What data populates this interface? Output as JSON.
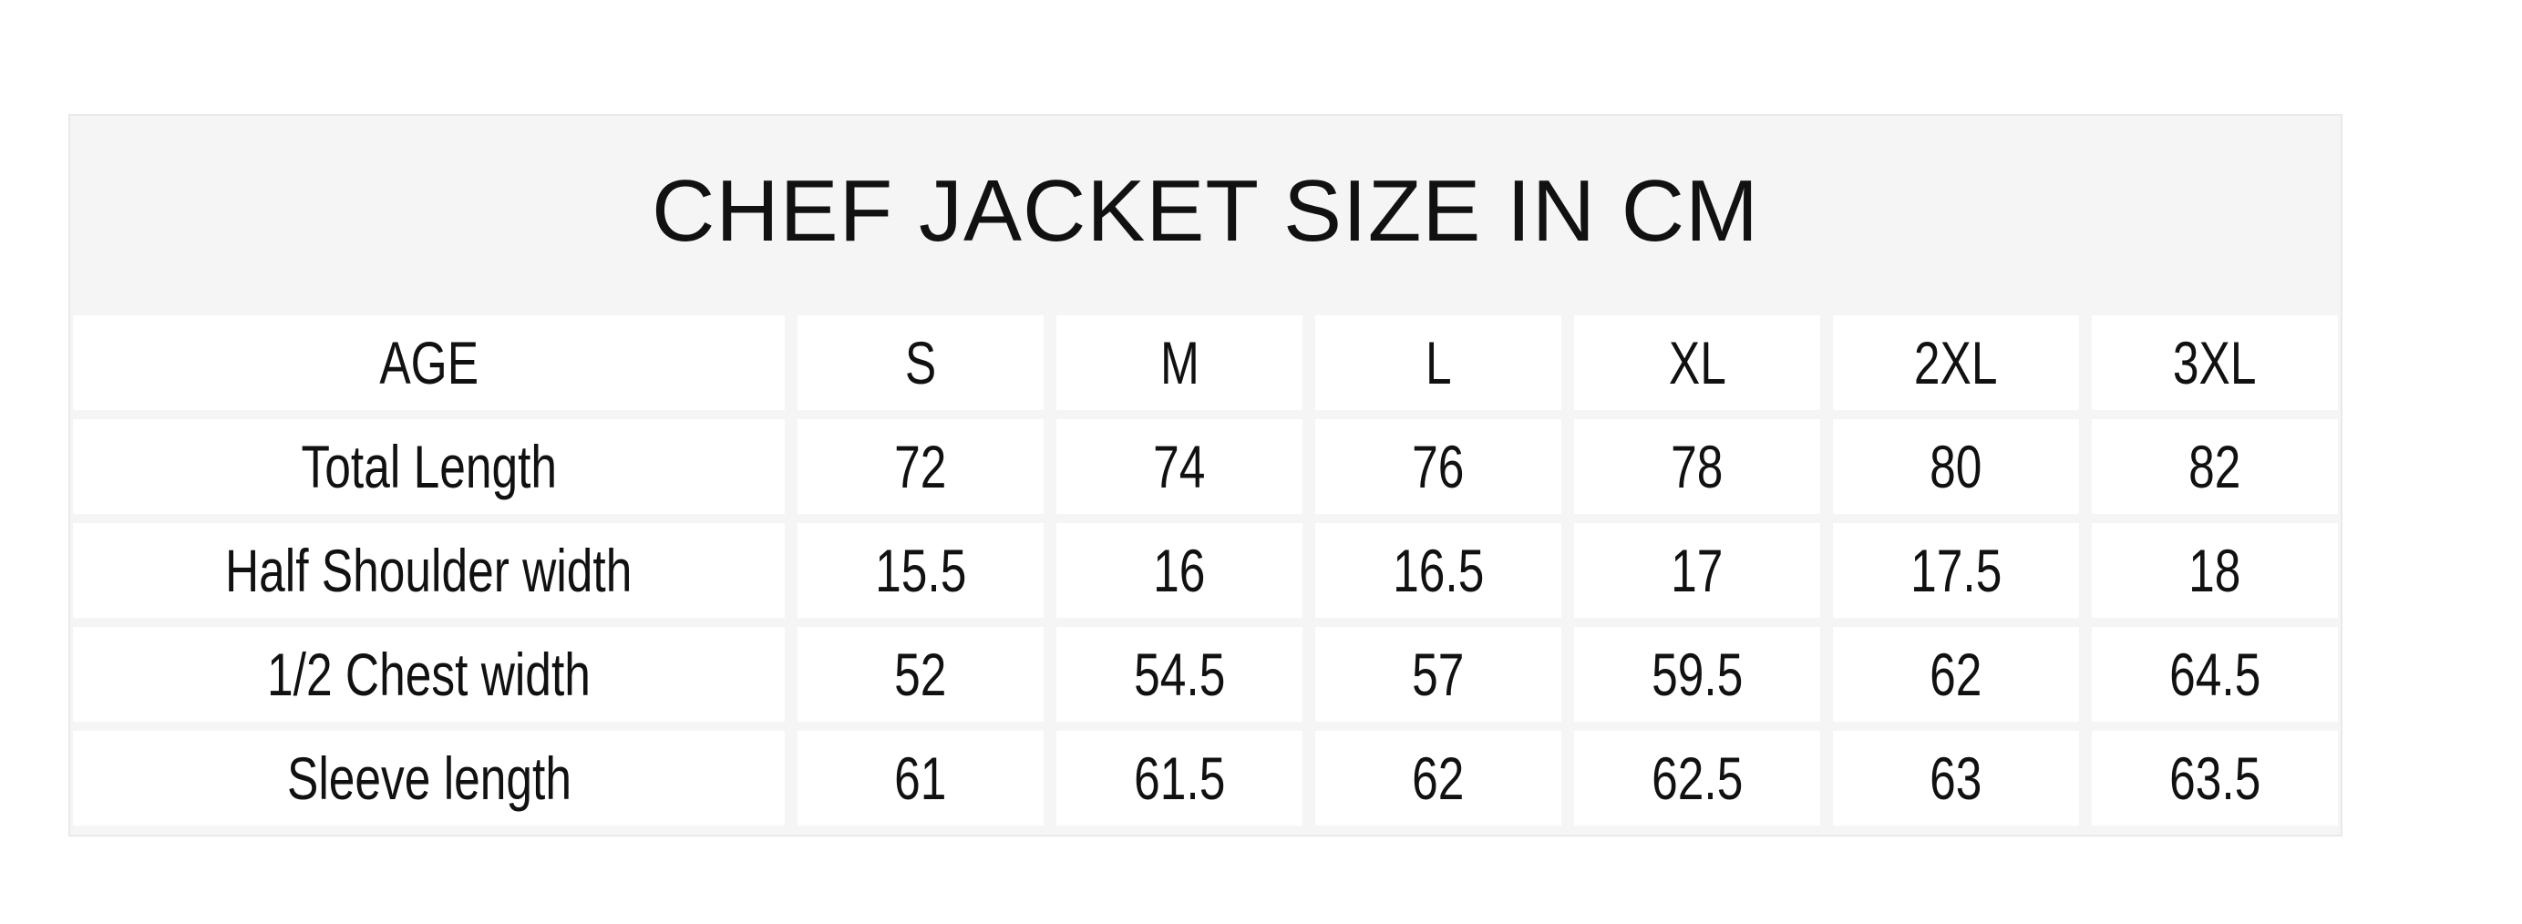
{
  "chart_data": {
    "type": "table",
    "title": "CHEF JACKET SIZE IN CM",
    "unit": "cm",
    "columns": [
      "AGE",
      "S",
      "M",
      "L",
      "XL",
      "2XL",
      "3XL"
    ],
    "rows": [
      {
        "label": "Total Length",
        "values": [
          "72",
          "74",
          "76",
          "78",
          "80",
          "82"
        ]
      },
      {
        "label": "Half Shoulder width",
        "values": [
          "15.5",
          "16",
          "16.5",
          "17",
          "17.5",
          "18"
        ]
      },
      {
        "label": "1/2 Chest width",
        "values": [
          "52",
          "54.5",
          "57",
          "59.5",
          "62",
          "64.5"
        ]
      },
      {
        "label": "Sleeve length",
        "values": [
          "61",
          "61.5",
          "62",
          "62.5",
          "63",
          "63.5"
        ]
      }
    ],
    "layout": {
      "legend": "none",
      "grid": "separated-cells",
      "title_position": "top-center"
    },
    "colors": {
      "page_bg": "#ffffff",
      "table_bg": "#f5f5f5",
      "cell_bg": "#ffffff",
      "outer_border": "#e9e9e9",
      "text": "#111111"
    }
  }
}
